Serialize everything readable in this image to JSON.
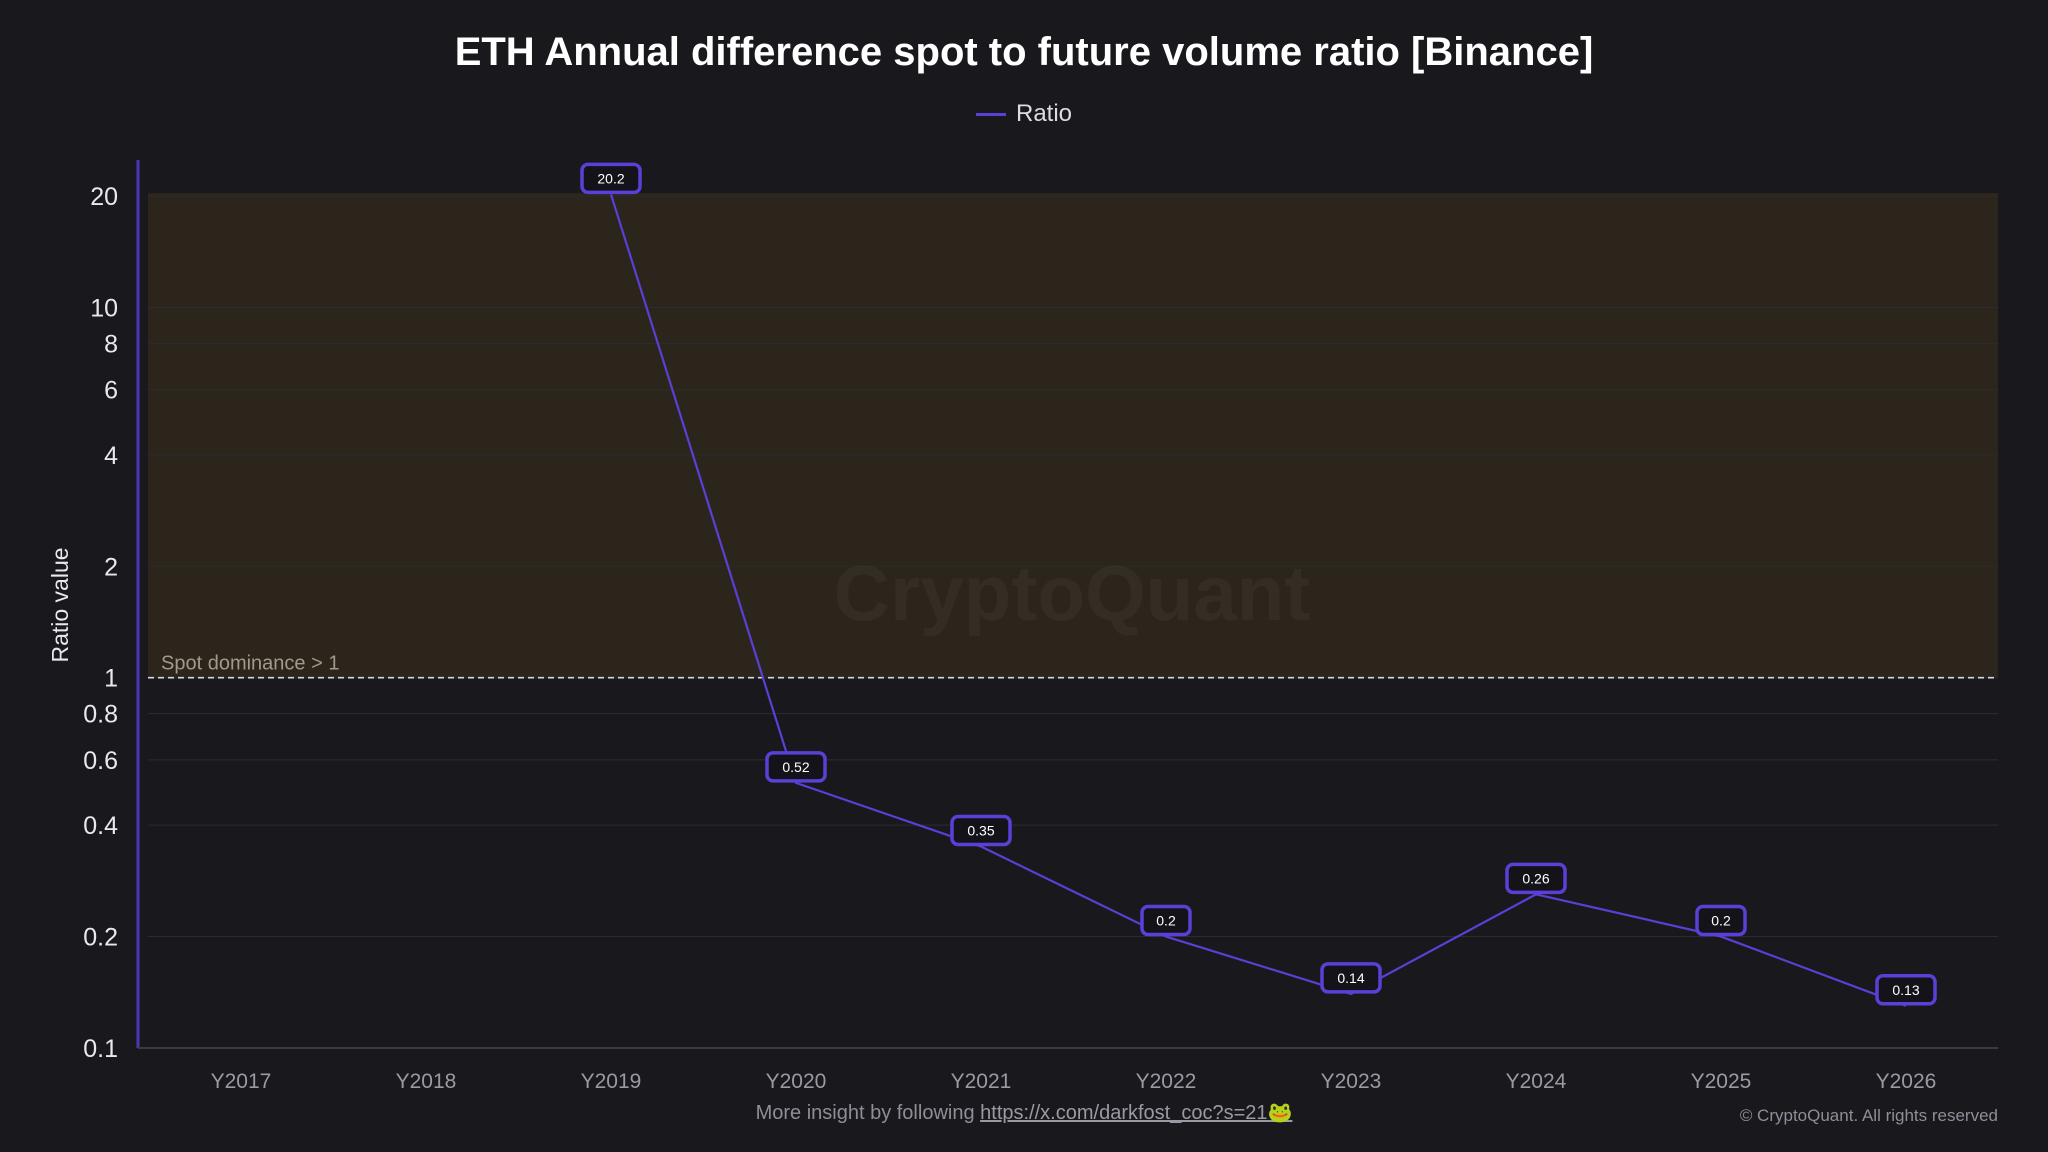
{
  "chart_data": {
    "type": "line",
    "title": "ETH Annual difference spot to future volume ratio [Binance]",
    "xlabel": "",
    "ylabel": "Ratio value",
    "yscale": "log",
    "ylim": [
      0.1,
      24
    ],
    "yticks": [
      0.1,
      0.2,
      0.4,
      0.6,
      0.8,
      1,
      2,
      4,
      6,
      8,
      10,
      20
    ],
    "categories": [
      "Y2017",
      "Y2018",
      "Y2019",
      "Y2020",
      "Y2021",
      "Y2022",
      "Y2023",
      "Y2024",
      "Y2025",
      "Y2026"
    ],
    "series": [
      {
        "name": "Ratio",
        "color": "#5b3fd6",
        "values": [
          null,
          null,
          20.2,
          0.52,
          0.35,
          0.2,
          0.14,
          0.26,
          0.2,
          0.13
        ],
        "labels": [
          null,
          null,
          "20.2",
          "0.52",
          "0.35",
          "0.2",
          "0.14",
          "0.26",
          "0.2",
          "0.13"
        ]
      }
    ],
    "threshold": {
      "value": 1,
      "label": "Spot dominance > 1"
    },
    "shaded_region": {
      "from": 1,
      "to": 20.2,
      "color": "#2d261c"
    },
    "legend": "top-center",
    "grid": true,
    "watermark": "CryptoQuant"
  },
  "footer": {
    "insight_text": "More insight by following",
    "link_text": "https://x.com/darkfost_coc?s=21",
    "link_emoji": "🐸",
    "copyright": "© CryptoQuant. All rights reserved"
  }
}
